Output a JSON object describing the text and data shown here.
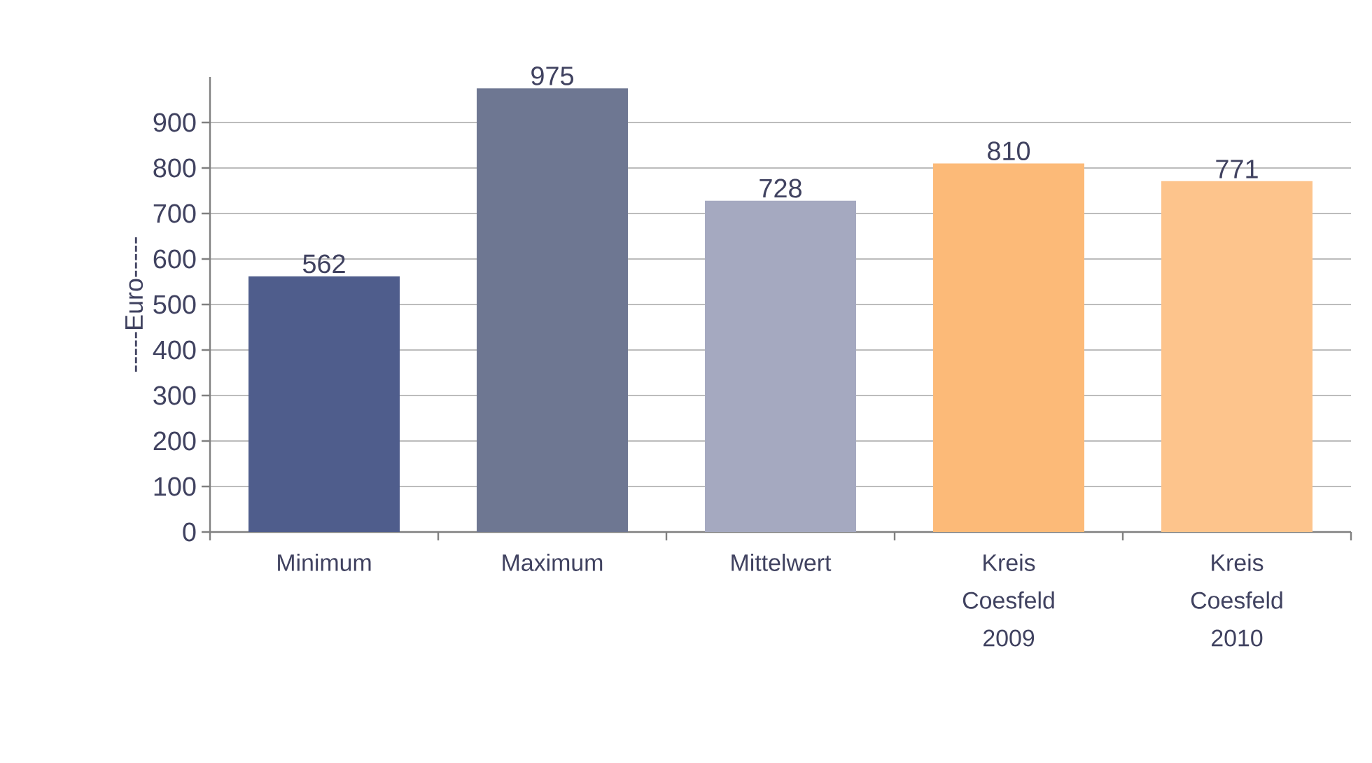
{
  "chart_data": {
    "type": "bar",
    "ylabel": "-----Euro-----",
    "categories": [
      "Minimum",
      "Maximum",
      "Mittelwert",
      "Kreis Coesfeld 2009",
      "Kreis Coesfeld 2010"
    ],
    "values": [
      562,
      975,
      728,
      810,
      771
    ],
    "colors": [
      "#4f5d8c",
      "#6e7792",
      "#a5a9c0",
      "#fcba78",
      "#fdc48c"
    ],
    "ylim": [
      0,
      1000
    ],
    "yticks": [
      0,
      100,
      200,
      300,
      400,
      500,
      600,
      700,
      800,
      900
    ],
    "grid": "y",
    "data_labels": true
  }
}
